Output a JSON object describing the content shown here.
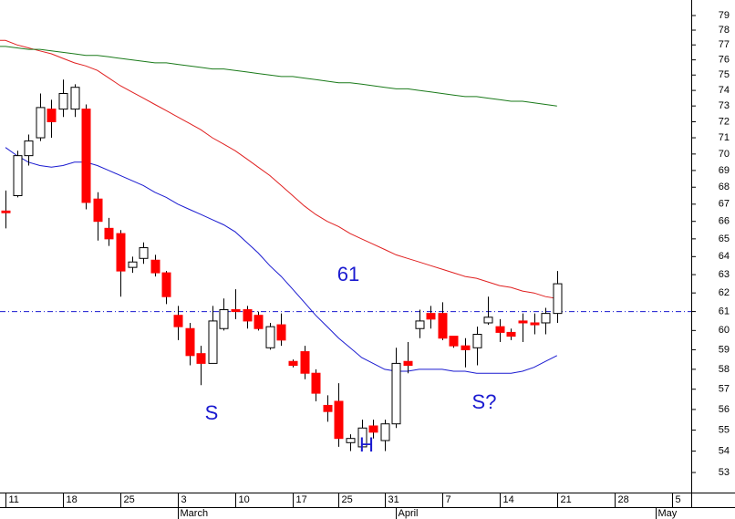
{
  "chart_data": {
    "type": "candlestick",
    "log_scale": true,
    "ylim": [
      52.08,
      80.08
    ],
    "yticks": [
      53,
      54,
      55,
      56,
      57,
      58,
      59,
      60,
      61,
      62,
      63,
      64,
      65,
      66,
      67,
      68,
      69,
      70,
      71,
      72,
      73,
      74,
      75,
      76,
      77,
      78,
      79
    ],
    "categories": [
      "11",
      null,
      null,
      null,
      null,
      "18",
      null,
      null,
      null,
      null,
      "25",
      null,
      null,
      null,
      null,
      "3",
      null,
      null,
      null,
      null,
      "10",
      null,
      null,
      null,
      null,
      "17",
      null,
      null,
      null,
      "25",
      null,
      null,
      null,
      "31",
      null,
      null,
      null,
      null,
      "7",
      null,
      null,
      null,
      null,
      "14",
      null,
      null,
      null,
      null,
      "21",
      null,
      null,
      null,
      null,
      "28",
      null,
      null,
      null,
      null,
      "5",
      null
    ],
    "months": [
      "March",
      "April",
      "May"
    ],
    "open": [
      66.6,
      67.5,
      69.9,
      71.0,
      72.8,
      72.8,
      72.8,
      72.8,
      67.3,
      65.6,
      65.3,
      63.4,
      63.9,
      63.8,
      63.1,
      60.8,
      60.1,
      58.8,
      58.3,
      60.1,
      61.1,
      61.1,
      60.8,
      59.1,
      60.3,
      58.4,
      58.9,
      57.8,
      56.2,
      56.4,
      54.4,
      54.2,
      55.2,
      54.5,
      55.3,
      58.4,
      60.1,
      60.9,
      60.9,
      59.7,
      59.2,
      59.1,
      60.4,
      60.2,
      59.9,
      60.5,
      60.4,
      60.4,
      60.9,
      null,
      null,
      null,
      null,
      null,
      null,
      null,
      null,
      null,
      null,
      null
    ],
    "high": [
      67.8,
      70.2,
      71.2,
      73.8,
      73.4,
      74.7,
      74.4,
      73.1,
      67.7,
      66.2,
      65.5,
      64.0,
      64.8,
      64.1,
      63.2,
      61.3,
      60.4,
      59.2,
      61.3,
      61.7,
      62.2,
      61.3,
      61.0,
      60.4,
      60.9,
      58.5,
      59.2,
      58.0,
      56.7,
      57.3,
      54.8,
      55.5,
      55.5,
      55.5,
      59.1,
      59.4,
      61.1,
      61.3,
      61.5,
      59.7,
      59.6,
      60.2,
      61.8,
      60.6,
      60.1,
      60.9,
      60.9,
      61.2,
      63.2,
      null,
      null,
      null,
      null,
      null,
      null,
      null,
      null,
      null,
      null,
      null
    ],
    "low": [
      65.6,
      67.4,
      69.3,
      70.8,
      71.0,
      72.3,
      72.3,
      66.7,
      64.9,
      64.6,
      61.8,
      63.1,
      63.6,
      62.9,
      61.4,
      59.5,
      58.2,
      57.2,
      58.3,
      60.0,
      60.6,
      60.1,
      60.0,
      59.0,
      59.2,
      58.1,
      57.5,
      56.4,
      55.4,
      54.2,
      54.0,
      54.2,
      54.6,
      54.0,
      55.1,
      57.8,
      59.6,
      60.1,
      59.5,
      59.1,
      58.1,
      58.2,
      60.3,
      59.4,
      59.5,
      59.4,
      59.8,
      59.8,
      60.4,
      null,
      null,
      null,
      null,
      null,
      null,
      null,
      null,
      null,
      null,
      null
    ],
    "close": [
      66.5,
      69.9,
      70.8,
      72.9,
      72.0,
      73.8,
      74.2,
      67.1,
      66.0,
      65.0,
      63.2,
      63.7,
      64.5,
      63.1,
      61.8,
      60.2,
      58.7,
      58.3,
      60.5,
      61.1,
      61.0,
      60.5,
      60.1,
      60.2,
      59.5,
      58.2,
      57.8,
      56.8,
      55.9,
      54.6,
      54.6,
      55.1,
      54.9,
      55.3,
      58.3,
      58.2,
      60.5,
      60.6,
      59.6,
      59.2,
      59.0,
      59.8,
      60.7,
      59.9,
      59.7,
      60.4,
      60.3,
      60.9,
      62.5,
      null,
      null,
      null,
      null,
      null,
      null,
      null,
      null,
      null,
      null,
      null
    ],
    "up_color": "#ffffff",
    "down_color": "#ff0000",
    "lines": [
      {
        "color": "#e02020",
        "values": [
          77.3,
          77.0,
          76.8,
          76.6,
          76.4,
          76.1,
          75.8,
          75.6,
          75.3,
          74.8,
          74.3,
          73.9,
          73.5,
          73.1,
          72.7,
          72.3,
          71.9,
          71.5,
          71.0,
          70.6,
          70.2,
          69.7,
          69.2,
          68.7,
          68.1,
          67.5,
          66.9,
          66.4,
          66.0,
          65.7,
          65.3,
          65.0,
          64.7,
          64.4,
          64.1,
          63.9,
          63.7,
          63.5,
          63.3,
          63.1,
          62.9,
          62.8,
          62.6,
          62.4,
          62.3,
          62.1,
          62.0,
          61.8,
          61.7,
          null,
          null,
          null,
          null,
          null,
          null,
          null,
          null,
          null,
          null,
          null
        ]
      },
      {
        "color": "#1a7a1a",
        "values": [
          76.9,
          76.8,
          76.7,
          76.7,
          76.6,
          76.5,
          76.4,
          76.3,
          76.3,
          76.2,
          76.1,
          76.0,
          75.9,
          75.8,
          75.8,
          75.7,
          75.6,
          75.5,
          75.4,
          75.4,
          75.3,
          75.2,
          75.1,
          75.0,
          74.9,
          74.9,
          74.8,
          74.7,
          74.6,
          74.5,
          74.5,
          74.4,
          74.3,
          74.2,
          74.1,
          74.1,
          74.0,
          73.9,
          73.8,
          73.7,
          73.6,
          73.6,
          73.5,
          73.4,
          73.3,
          73.3,
          73.2,
          73.1,
          73.0,
          null,
          null,
          null,
          null,
          null,
          null,
          null,
          null,
          null,
          null,
          null
        ]
      },
      {
        "color": "#1a1ad0",
        "values": [
          70.4,
          69.9,
          69.5,
          69.3,
          69.2,
          69.3,
          69.5,
          69.5,
          69.3,
          69.0,
          68.7,
          68.4,
          68.1,
          67.7,
          67.4,
          67.0,
          66.7,
          66.4,
          66.1,
          65.8,
          65.4,
          64.8,
          64.2,
          63.5,
          62.9,
          62.2,
          61.5,
          60.8,
          60.2,
          59.6,
          59.1,
          58.6,
          58.3,
          58.0,
          57.9,
          57.9,
          58.0,
          58.0,
          58.0,
          57.9,
          57.9,
          57.8,
          57.8,
          57.8,
          57.8,
          57.9,
          58.1,
          58.4,
          58.7,
          null,
          null,
          null,
          null,
          null,
          null,
          null,
          null,
          null,
          null,
          null
        ]
      }
    ],
    "reference_line": {
      "value": 61,
      "color": "#1a1ad0"
    },
    "annotations": [
      "61",
      "S",
      "H",
      "S?"
    ]
  }
}
